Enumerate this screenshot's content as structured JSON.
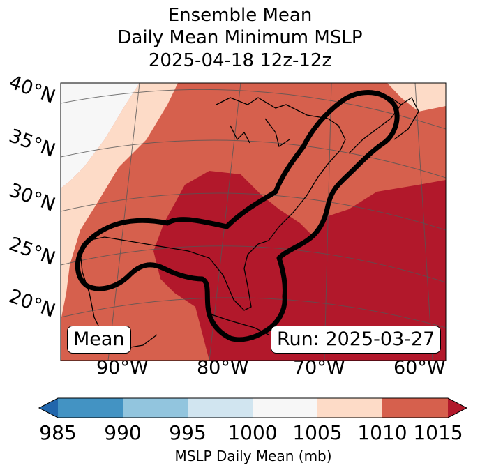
{
  "title": {
    "line1": "Ensemble Mean",
    "line2": "Daily Mean Minimum MSLP",
    "line3": "2025-04-18 12z-12z"
  },
  "map": {
    "lat_labels": [
      "40°N",
      "35°N",
      "30°N",
      "25°N",
      "20°N"
    ],
    "lon_labels": [
      "90°W",
      "80°W",
      "70°W",
      "60°W"
    ],
    "mean_box": "Mean",
    "run_box": "Run: 2025-03-27"
  },
  "colorbar": {
    "ticks": [
      "985",
      "990",
      "995",
      "1000",
      "1005",
      "1010",
      "1015"
    ],
    "label": "MSLP Daily Mean (mb)",
    "colors": [
      "#2166ac",
      "#4393c3",
      "#92c5de",
      "#d1e5f0",
      "#f7f7f7",
      "#fddbc7",
      "#d6604d",
      "#b2182b"
    ]
  }
}
